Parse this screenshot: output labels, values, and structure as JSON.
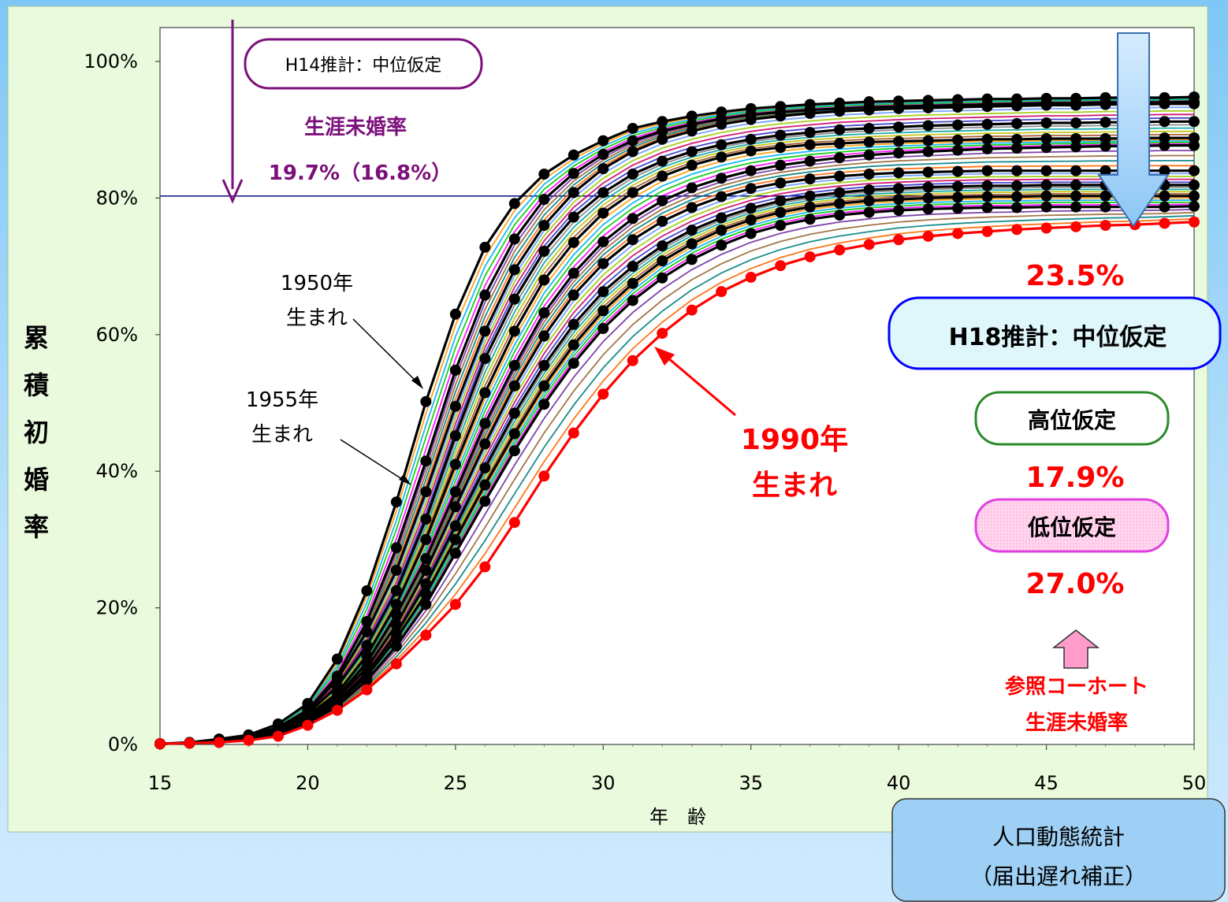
{
  "chart_data": {
    "type": "line",
    "ylabel": "累積初婚率",
    "xlabel": "年　齢",
    "xlim": [
      15,
      50
    ],
    "ylim": [
      0,
      100
    ],
    "x_ticks": [
      "15",
      "20",
      "25",
      "30",
      "35",
      "40",
      "45",
      "50"
    ],
    "y_ticks": [
      "0%",
      "20%",
      "40%",
      "60%",
      "80%",
      "100%"
    ],
    "grid": false,
    "reference_line_y": 80.3,
    "ages": [
      15,
      16,
      17,
      18,
      19,
      20,
      21,
      22,
      23,
      24,
      25,
      26,
      27,
      28,
      29,
      30,
      31,
      32,
      33,
      34,
      35,
      36,
      37,
      38,
      39,
      40,
      41,
      42,
      43,
      44,
      45,
      46,
      47,
      48,
      49,
      50
    ],
    "series": [
      {
        "name": "1950年生まれ",
        "color": "#000000",
        "values": [
          0.1,
          0.3,
          0.8,
          1.4,
          3.0,
          6.0,
          12.5,
          22.5,
          35.5,
          50.2,
          63.0,
          72.8,
          79.2,
          83.5,
          86.3,
          88.4,
          90.2,
          91.2,
          92.0,
          92.6,
          93.1,
          93.4,
          93.7,
          93.9,
          94.1,
          94.2,
          94.3,
          94.4,
          94.5,
          94.5,
          94.6,
          94.6,
          94.7,
          94.7,
          94.7,
          94.8
        ]
      },
      {
        "name": "1955年生まれ",
        "color": "#000000",
        "values": [
          0.1,
          0.2,
          0.6,
          1.2,
          2.5,
          5.0,
          10.0,
          18.0,
          28.8,
          41.5,
          54.8,
          65.8,
          74.0,
          79.8,
          83.6,
          86.4,
          88.4,
          89.8,
          90.8,
          91.6,
          92.2,
          92.6,
          92.9,
          93.1,
          93.3,
          93.4,
          93.5,
          93.6,
          93.7,
          93.8,
          93.9,
          93.9,
          94.0,
          94.0,
          94.0,
          94.1
        ]
      },
      {
        "values": [
          0.1,
          0.2,
          0.5,
          1.0,
          2.3,
          4.8,
          9.5,
          16.5,
          25.5,
          37.0,
          49.5,
          60.5,
          69.5,
          76.0,
          80.8,
          84.3,
          86.8,
          88.6,
          89.8,
          90.8,
          91.5,
          92.0,
          92.4,
          92.7,
          92.9,
          93.1,
          93.2,
          93.3,
          93.4,
          93.5,
          93.6,
          93.6,
          93.7,
          93.7,
          93.8,
          93.8
        ]
      },
      {
        "values": [
          0.1,
          0.2,
          0.5,
          1.0,
          2.1,
          4.5,
          8.5,
          14.5,
          22.5,
          33.0,
          45.2,
          56.5,
          65.2,
          72.2,
          77.2,
          80.8,
          83.5,
          85.4,
          86.8,
          87.8,
          88.6,
          89.2,
          89.6,
          90.0,
          90.2,
          90.4,
          90.6,
          90.7,
          90.8,
          90.9,
          91.0,
          91.0,
          91.1,
          91.1,
          91.2,
          91.2
        ]
      },
      {
        "values": [
          0.1,
          0.2,
          0.5,
          1.0,
          2.0,
          4.2,
          7.5,
          13.0,
          20.5,
          30.0,
          41.0,
          51.5,
          60.5,
          68.0,
          73.5,
          77.8,
          80.8,
          83.2,
          84.8,
          86.0,
          86.9,
          87.4,
          87.8,
          88.0,
          88.2,
          88.3,
          88.4,
          88.5,
          88.6,
          88.6,
          88.7,
          88.7,
          88.7,
          88.8,
          88.8,
          88.8
        ]
      },
      {
        "values": [
          0.1,
          0.2,
          0.4,
          0.9,
          1.9,
          4.0,
          7.0,
          12.0,
          19.0,
          27.2,
          37.0,
          47.0,
          55.5,
          63.2,
          69.0,
          73.6,
          77.0,
          79.6,
          81.5,
          82.9,
          84.0,
          84.8,
          85.4,
          85.9,
          86.3,
          86.6,
          86.8,
          87.0,
          87.2,
          87.3,
          87.4,
          87.5,
          87.6,
          87.6,
          87.7,
          87.7
        ]
      },
      {
        "values": [
          0.1,
          0.2,
          0.4,
          0.9,
          1.8,
          3.8,
          6.8,
          11.2,
          17.5,
          25.5,
          34.8,
          44.0,
          52.5,
          59.8,
          65.8,
          70.4,
          73.9,
          76.6,
          78.6,
          80.2,
          81.4,
          82.2,
          82.8,
          83.2,
          83.5,
          83.7,
          83.8,
          83.9,
          84.0,
          84.0,
          84.0,
          84.0,
          84.0,
          84.0,
          84.0,
          84.0
        ]
      },
      {
        "values": [
          0.1,
          0.2,
          0.4,
          0.8,
          1.6,
          3.5,
          6.3,
          10.5,
          16.2,
          23.5,
          32.0,
          40.5,
          48.5,
          55.5,
          61.5,
          66.3,
          70.0,
          73.0,
          75.3,
          77.1,
          78.5,
          79.6,
          80.3,
          80.8,
          81.2,
          81.4,
          81.6,
          81.7,
          81.8,
          81.8,
          81.9,
          81.9,
          81.9,
          81.9,
          81.9,
          81.9
        ]
      },
      {
        "values": [
          0.1,
          0.2,
          0.4,
          0.8,
          1.5,
          3.3,
          6.0,
          10.0,
          15.5,
          22.0,
          30.0,
          38.0,
          45.5,
          52.5,
          58.5,
          63.5,
          67.5,
          70.8,
          73.3,
          75.3,
          76.8,
          77.9,
          78.7,
          79.2,
          79.6,
          79.8,
          80.0,
          80.1,
          80.2,
          80.2,
          80.3,
          80.3,
          80.3,
          80.3,
          80.3,
          80.3
        ]
      },
      {
        "values": [
          0.1,
          0.2,
          0.3,
          0.7,
          1.4,
          3.1,
          5.6,
          9.4,
          14.4,
          20.5,
          28.0,
          35.6,
          43.0,
          49.8,
          55.8,
          60.9,
          65.0,
          68.3,
          71.0,
          73.1,
          74.8,
          76.0,
          76.9,
          77.5,
          77.9,
          78.2,
          78.4,
          78.5,
          78.6,
          78.6,
          78.7,
          78.7,
          78.7,
          78.7,
          78.7,
          78.8
        ]
      },
      {
        "name": "1990年生まれ",
        "color": "#ff0000",
        "values": [
          0.1,
          0.2,
          0.3,
          0.6,
          1.2,
          2.8,
          5.0,
          8.0,
          11.8,
          16.0,
          20.5,
          26.0,
          32.5,
          39.3,
          45.6,
          51.3,
          56.2,
          60.2,
          63.6,
          66.3,
          68.4,
          70.1,
          71.4,
          72.4,
          73.2,
          73.9,
          74.4,
          74.8,
          75.1,
          75.4,
          75.6,
          75.8,
          76.0,
          76.1,
          76.3,
          76.5
        ]
      }
    ],
    "annotations": {
      "h14_box": "H14推計：中位仮定",
      "h14_title": "生涯未婚率",
      "h14_value": "19.7%（16.8%）",
      "label_1950": [
        "1950年",
        "生まれ"
      ],
      "label_1955": [
        "1955年",
        "生まれ"
      ],
      "label_1990": [
        "1990年",
        "生まれ"
      ],
      "value_mid": "23.5%",
      "h18_box": "H18推計：中位仮定",
      "high_box": "高位仮定",
      "value_high": "17.9%",
      "low_box": "低位仮定",
      "value_low": "27.0%",
      "ref_cohort": [
        "参照コーホート",
        "生涯未婚率"
      ],
      "source": [
        "人口動態統計",
        "（届出遅れ補正）"
      ]
    },
    "colors": {
      "accent_red": "#ff0000",
      "purple": "#7b0f7b",
      "plot_bg": "#ffffff",
      "frame_bg": "#e9fbdc",
      "h18_box_bg": "#dff6fb",
      "high_box_border": "#2a8a2a",
      "low_box_border": "#e040e0",
      "source_box_bg": "#9ed0f5"
    }
  }
}
